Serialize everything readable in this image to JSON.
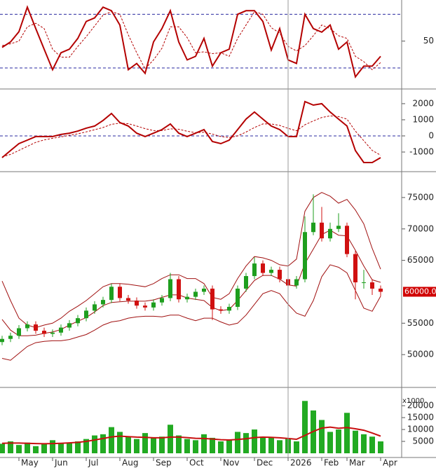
{
  "chart_data": [
    {
      "type": "line",
      "ylim": [
        -2,
        96
      ],
      "yticks": [
        50
      ],
      "levels": [
        20,
        80
      ],
      "level_color": "#2a2aa0",
      "series": [
        {
          "color": "#b40000",
          "values": [
            43,
            49,
            60.5,
            88,
            64,
            41,
            18,
            37,
            41,
            53,
            72,
            76,
            88,
            84,
            68,
            18,
            25,
            14,
            49,
            64,
            84,
            49,
            29,
            33,
            53,
            22,
            37,
            41,
            80,
            84,
            84,
            72,
            40,
            64,
            29,
            25,
            80,
            64,
            60,
            68,
            41,
            49,
            10,
            22,
            22,
            33
          ]
        },
        {
          "color": "#b40000",
          "dashed": true,
          "values": [
            45,
            47,
            50,
            66,
            70,
            64,
            41,
            32,
            32,
            44,
            55,
            67,
            79,
            83,
            80,
            57,
            37,
            19,
            29,
            42,
            66,
            66,
            54,
            37,
            38,
            36,
            37,
            33,
            53,
            68,
            83,
            80,
            65,
            59,
            44,
            39,
            45,
            56,
            68,
            64,
            56,
            53,
            33,
            27,
            18,
            26
          ]
        }
      ]
    },
    {
      "type": "line",
      "ylim": [
        -2130,
        2780
      ],
      "yticks": [
        2000,
        1000,
        0,
        -1000
      ],
      "levels": [
        0
      ],
      "level_color": "#2a2aa0",
      "series": [
        {
          "color": "#b40000",
          "values": [
            -1350,
            -910,
            -480,
            -260,
            -40,
            -40,
            -40,
            90,
            170,
            300,
            480,
            610,
            960,
            1390,
            830,
            610,
            170,
            -40,
            170,
            390,
            740,
            170,
            -40,
            170,
            390,
            -350,
            -480,
            -260,
            390,
            1040,
            1480,
            1040,
            610,
            390,
            -40,
            -40,
            2130,
            1910,
            2000,
            1480,
            1040,
            610,
            -910,
            -1650,
            -1650,
            -1350
          ]
        },
        {
          "color": "#b40000",
          "dashed": true,
          "values": [
            -1300,
            -1150,
            -900,
            -650,
            -400,
            -250,
            -150,
            -60,
            40,
            130,
            250,
            380,
            520,
            720,
            790,
            760,
            610,
            450,
            330,
            330,
            440,
            410,
            290,
            200,
            230,
            110,
            -40,
            -100,
            0,
            240,
            520,
            740,
            740,
            650,
            470,
            320,
            690,
            930,
            1140,
            1240,
            1200,
            1040,
            300,
            -300,
            -900,
            -1200
          ]
        }
      ]
    },
    {
      "type": "candlestick",
      "ylim": [
        44890,
        78780
      ],
      "yticks": [
        75000,
        70000,
        65000,
        55000,
        50000
      ],
      "up_color": "#1e9e1e",
      "down_color": "#d01010",
      "last_price": {
        "value": 60000,
        "label": "60000.00"
      },
      "last_price_color": "#d00000",
      "open": [
        52000,
        52500,
        53000,
        54200,
        54800,
        53800,
        53300,
        53500,
        54300,
        55000,
        55800,
        57000,
        58000,
        58700,
        60800,
        59000,
        58600,
        57800,
        57500,
        58300,
        59000,
        62000,
        58800,
        59200,
        60000,
        60500,
        57200,
        57000,
        57600,
        60500,
        62500,
        64500,
        63000,
        63500,
        62000,
        61000,
        62000,
        69500,
        71000,
        68500,
        70000,
        70500,
        66000,
        61500,
        61500,
        60500
      ],
      "high": [
        53000,
        53500,
        54700,
        55300,
        55300,
        54300,
        54000,
        54800,
        55500,
        56300,
        57500,
        58500,
        59200,
        61300,
        61300,
        59500,
        59100,
        58300,
        58800,
        59500,
        63000,
        62500,
        59700,
        60500,
        61000,
        61000,
        57700,
        58100,
        61000,
        63000,
        65500,
        65000,
        64000,
        64000,
        62500,
        62500,
        72000,
        75500,
        73500,
        71000,
        72500,
        71000,
        66500,
        63500,
        62000,
        61000
      ],
      "low": [
        51500,
        52000,
        52500,
        53700,
        53300,
        52800,
        52800,
        53000,
        53800,
        54500,
        55300,
        56500,
        57500,
        58200,
        58500,
        58100,
        57300,
        57000,
        57000,
        57800,
        58500,
        58300,
        58300,
        58700,
        59500,
        55500,
        56500,
        56500,
        57100,
        60000,
        62000,
        62500,
        62500,
        61500,
        60500,
        60500,
        61500,
        69000,
        68000,
        68000,
        69500,
        65500,
        58800,
        60500,
        59500,
        59300
      ],
      "close": [
        52500,
        53000,
        54200,
        54800,
        53800,
        53300,
        53500,
        54300,
        55000,
        55800,
        57000,
        58000,
        58700,
        60800,
        59000,
        58600,
        57800,
        57500,
        58300,
        59000,
        62000,
        58800,
        59200,
        60000,
        60500,
        57200,
        57000,
        57600,
        60500,
        62500,
        64500,
        63000,
        63500,
        62000,
        61000,
        62000,
        69500,
        71000,
        68500,
        70000,
        70500,
        66000,
        61500,
        61500,
        60500,
        60000
      ],
      "series": [
        {
          "color": "#a01010",
          "values": [
            61700,
            58600,
            55800,
            54700,
            54300,
            54700,
            55000,
            55800,
            56900,
            57700,
            58600,
            59700,
            60800,
            61300,
            61300,
            61200,
            61000,
            60800,
            61300,
            62100,
            62700,
            62700,
            62100,
            62100,
            61300,
            59100,
            58800,
            59700,
            62100,
            64100,
            65600,
            65400,
            65000,
            64300,
            64100,
            65200,
            72800,
            75000,
            75800,
            75200,
            74100,
            74700,
            73000,
            70800,
            66900,
            63600
          ]
        },
        {
          "color": "#a01010",
          "values": [
            55600,
            53900,
            53000,
            53000,
            53100,
            53400,
            53600,
            54000,
            54700,
            55300,
            55900,
            56800,
            57800,
            58300,
            58400,
            58500,
            58500,
            58500,
            58700,
            59100,
            59500,
            59500,
            59000,
            58800,
            58600,
            57500,
            57000,
            57200,
            58600,
            60200,
            61800,
            62600,
            62600,
            62000,
            61100,
            60900,
            64500,
            66800,
            69100,
            69800,
            69000,
            68900,
            66600,
            64100,
            61900,
            61500
          ]
        },
        {
          "color": "#a01010",
          "values": [
            49400,
            49100,
            50200,
            51300,
            51900,
            52100,
            52200,
            52200,
            52400,
            52800,
            53200,
            53900,
            54700,
            55200,
            55400,
            55800,
            56000,
            56100,
            56100,
            56000,
            56300,
            56300,
            55800,
            55400,
            55800,
            55800,
            55200,
            54700,
            55000,
            56300,
            58000,
            59700,
            60200,
            59700,
            58000,
            56600,
            56100,
            58600,
            62400,
            64300,
            63900,
            63000,
            60200,
            57400,
            56900,
            59300
          ]
        }
      ]
    },
    {
      "type": "bar",
      "ylim": [
        0,
        26500
      ],
      "yticks": [
        20000,
        15000,
        10000,
        5000
      ],
      "unit_label": "x1000",
      "color": "#22aa22",
      "categories": [
        null,
        null,
        "May",
        null,
        null,
        null,
        "Jun",
        null,
        null,
        null,
        "Jul",
        null,
        null,
        null,
        "Aug",
        null,
        null,
        null,
        "Sep",
        null,
        null,
        null,
        "Oct",
        null,
        null,
        null,
        "Nov",
        null,
        null,
        null,
        "Dec",
        null,
        null,
        null,
        "2026",
        null,
        null,
        null,
        "Feb",
        null,
        null,
        "Mar",
        null,
        null,
        null,
        "Apr"
      ],
      "values": [
        4000,
        5000,
        3500,
        4500,
        3000,
        4000,
        5500,
        4000,
        4500,
        5000,
        6000,
        7500,
        8000,
        11000,
        9000,
        7000,
        6000,
        8500,
        6500,
        7000,
        12000,
        7500,
        6000,
        5500,
        8000,
        6500,
        5000,
        5500,
        9000,
        8500,
        10000,
        7000,
        6500,
        5500,
        6000,
        5000,
        22000,
        18000,
        14000,
        9000,
        10000,
        17000,
        9500,
        8000,
        7000,
        5000
      ],
      "series": [
        {
          "color": "#c81010",
          "values": [
            4200,
            4300,
            4300,
            4200,
            4100,
            4000,
            4100,
            4200,
            4400,
            4600,
            5000,
            5600,
            6200,
            6900,
            7200,
            7000,
            6800,
            6700,
            6500,
            6500,
            6800,
            6800,
            6600,
            6300,
            6200,
            6000,
            5700,
            5600,
            5800,
            6100,
            6600,
            6800,
            6700,
            6500,
            6200,
            5900,
            7500,
            9200,
            10600,
            11000,
            10500,
            10800,
            10300,
            9700,
            8500,
            7200
          ]
        }
      ]
    }
  ]
}
